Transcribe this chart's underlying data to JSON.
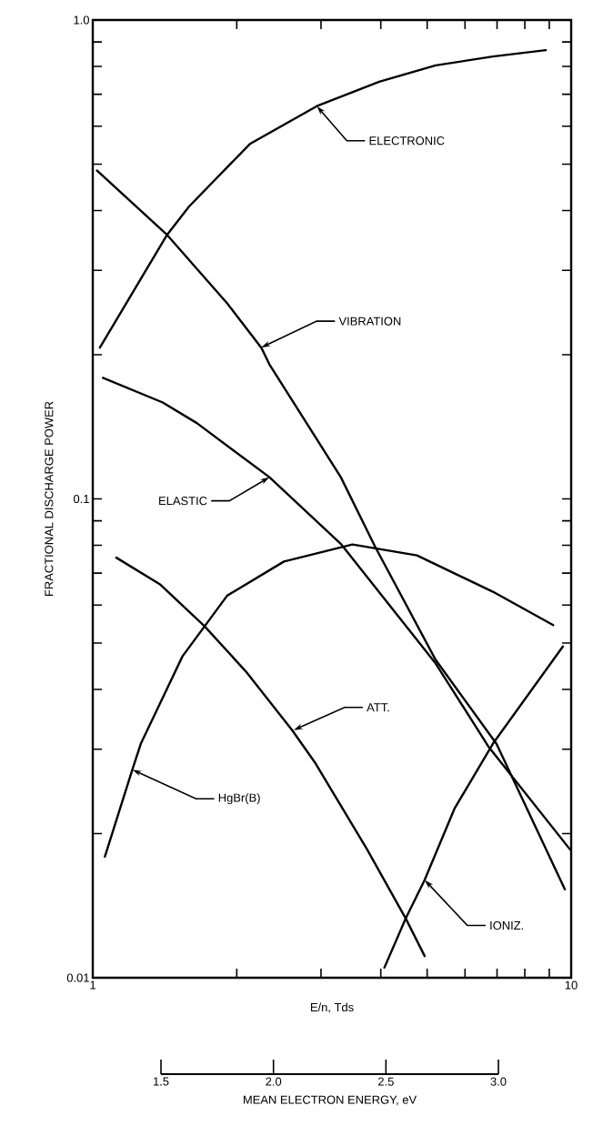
{
  "chart_data": {
    "type": "line",
    "xlabel": "E/n, Tds",
    "ylabel": "FRACTIONAL DISCHARGE POWER",
    "x2label": "MEAN ELECTRON ENERGY, eV",
    "log": "xy",
    "xlim": [
      1,
      10
    ],
    "ylim": [
      0.01,
      1
    ],
    "xticks": [
      1,
      {
        "value": 2,
        "label": null
      },
      {
        "value": 3,
        "label": null
      },
      {
        "value": 4,
        "label": null
      },
      {
        "value": 5,
        "label": null
      },
      {
        "value": 6,
        "label": null
      },
      {
        "value": 7,
        "label": null
      },
      {
        "value": 8,
        "label": null
      },
      {
        "value": 9,
        "label": null
      },
      10
    ],
    "yticks": [
      0.01,
      {
        "value": 0.02,
        "label": null
      },
      {
        "value": 0.03,
        "label": null
      },
      {
        "value": 0.04,
        "label": null
      },
      {
        "value": 0.05,
        "label": null
      },
      {
        "value": 0.06,
        "label": null
      },
      {
        "value": 0.07,
        "label": null
      },
      {
        "value": 0.08,
        "label": null
      },
      {
        "value": 0.09,
        "label": null
      },
      0.1,
      {
        "value": 0.2,
        "label": null
      },
      {
        "value": 0.3,
        "label": null
      },
      {
        "value": 0.4,
        "label": null
      },
      {
        "value": 0.5,
        "label": null
      },
      {
        "value": 0.6,
        "label": null
      },
      {
        "value": 0.7,
        "label": null
      },
      {
        "value": 0.8,
        "label": null
      },
      {
        "value": 0.9,
        "label": null
      },
      {
        "value": 1,
        "label": "1.0"
      }
    ],
    "x2lim": [
      1.5,
      3.0
    ],
    "x2ticks": [
      {
        "value": 1.5,
        "label": "1.5"
      },
      {
        "value": 2.0,
        "label": "2.0"
      },
      {
        "value": 2.5,
        "label": "2.5"
      },
      {
        "value": 3.0,
        "label": "3.0"
      }
    ],
    "series": [
      {
        "color": "#000000",
        "x": [
          1.035,
          1.43,
          1.59,
          2.13,
          2.94,
          3.97,
          5.21,
          6.86,
          8.85
        ],
        "values": [
          0.207,
          0.356,
          0.408,
          0.551,
          0.661,
          0.743,
          0.804,
          0.839,
          0.865
        ]
      },
      {
        "color": "#000000",
        "x": [
          1.02,
          1.43,
          1.91,
          2.25,
          2.34,
          3.3,
          3.89,
          5.21,
          6.98,
          9.7
        ],
        "values": [
          0.485,
          0.356,
          0.256,
          0.207,
          0.191,
          0.111,
          0.0796,
          0.0461,
          0.0308,
          0.0153
        ]
      },
      {
        "color": "#000000",
        "x": [
          1.05,
          1.4,
          1.65,
          2.34,
          3.31,
          5.21,
          6.73,
          9.96
        ],
        "values": [
          0.179,
          0.159,
          0.144,
          0.111,
          0.0803,
          0.0453,
          0.0303,
          0.0185
        ]
      },
      {
        "color": "#000000",
        "x": [
          1.06,
          1.21,
          1.26,
          1.54,
          1.91,
          2.51,
          3.49,
          4.76,
          6.86,
          9.17
        ],
        "values": [
          0.0179,
          0.0272,
          0.0308,
          0.0469,
          0.0628,
          0.074,
          0.0803,
          0.0762,
          0.064,
          0.0545
        ]
      },
      {
        "color": "#000000",
        "x": [
          1.12,
          1.38,
          1.71,
          2.09,
          2.61,
          2.91,
          3.75,
          4.51,
          4.94
        ],
        "values": [
          0.0754,
          0.0664,
          0.0543,
          0.0436,
          0.0329,
          0.0282,
          0.0185,
          0.0133,
          0.0111
        ]
      },
      {
        "color": "#000000",
        "x": [
          4.07,
          4.51,
          4.94,
          5.71,
          6.86,
          9.61
        ],
        "values": [
          0.0105,
          0.0133,
          0.016,
          0.0226,
          0.0308,
          0.0492
        ]
      }
    ],
    "annotations": [
      {
        "text": "ELECTRONIC",
        "x": 2.94,
        "y": 0.661
      },
      {
        "text": "VIBRATION",
        "x": 2.25,
        "y": 0.207
      },
      {
        "text": "ELASTIC",
        "x": 2.34,
        "y": 0.111
      },
      {
        "text": "ATT.",
        "x": 2.63,
        "y": 0.0329
      },
      {
        "text": "HgBr(B)",
        "x": 1.21,
        "y": 0.0272
      },
      {
        "text": "IONIZ.",
        "x": 4.94,
        "y": 0.016
      }
    ]
  }
}
